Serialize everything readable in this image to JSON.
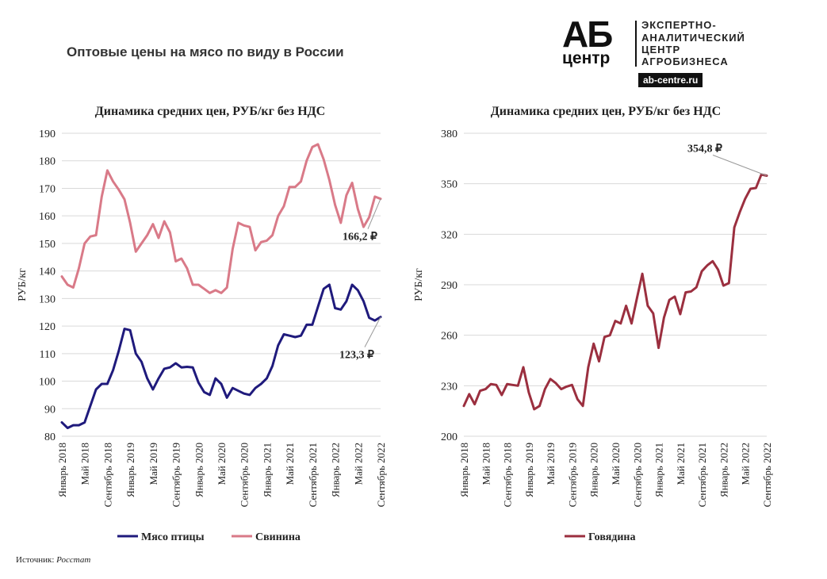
{
  "header": {
    "title": "Оптовые цены на мясо по виду в России",
    "logo": {
      "ab": "АБ",
      "centr": "центр",
      "line1": "ЭКСПЕРТНО-",
      "line2": "АНАЛИТИЧЕСКИЙ",
      "line3": "ЦЕНТР",
      "line4": "АГРОБИЗНЕСА",
      "site": "ab-centre.ru"
    }
  },
  "source": {
    "label": "Источник:",
    "value": "Росстат"
  },
  "colors": {
    "poultry": "#1f1a7c",
    "pork": "#d97a88",
    "beef": "#9b2f3f",
    "grid": "#d9d9d9",
    "text": "#222222"
  },
  "chart_data": [
    {
      "type": "line",
      "title": "Динамика средних цен, РУБ/кг без НДС",
      "ylabel": "РУБ/кг",
      "xlabel": "",
      "ylim": [
        80,
        190
      ],
      "yticks": [
        "80",
        "90",
        "100",
        "110",
        "120",
        "130",
        "140",
        "150",
        "160",
        "170",
        "180",
        "190"
      ],
      "xtick_labels": [
        "Январь 2018",
        "Май 2018",
        "Сентябрь 2018",
        "Январь 2019",
        "Май 2019",
        "Сентябрь 2019",
        "Январь 2020",
        "Май 2020",
        "Сентябрь 2020",
        "Январь 2021",
        "Май 2021",
        "Сентябрь 2021",
        "Январь 2022",
        "Май 2022",
        "Сентябрь 2022"
      ],
      "grid": true,
      "legend_position": "bottom",
      "series": [
        {
          "name": "Мясо птицы",
          "color": "#1f1a7c",
          "values": [
            85,
            83,
            84,
            84,
            85,
            91,
            97,
            99,
            99,
            104,
            111,
            119,
            118.5,
            110,
            107,
            101,
            97,
            101,
            104.5,
            105,
            106.5,
            105,
            105.2,
            105,
            99.5,
            96,
            95,
            101,
            99,
            94,
            97.5,
            96.5,
            95.5,
            95,
            97.5,
            99,
            101,
            105.5,
            113,
            117,
            116.5,
            116,
            116.5,
            120.5,
            120.5,
            127,
            133.5,
            135,
            126.5,
            126,
            129,
            135,
            133,
            129,
            123,
            122,
            123.3
          ],
          "end_label": "123,3 ₽"
        },
        {
          "name": "Свинина",
          "color": "#d97a88",
          "values": [
            138,
            135,
            134,
            141,
            150,
            152.5,
            153,
            167,
            176.5,
            172.5,
            169.5,
            166,
            157.5,
            147,
            150,
            153,
            157,
            152,
            158,
            154,
            143.5,
            144.5,
            141,
            135,
            135,
            133.5,
            132,
            133,
            132,
            134,
            148,
            157.5,
            156.5,
            156,
            147.5,
            150.5,
            151,
            153,
            160,
            163.5,
            170.5,
            170.5,
            172.5,
            180,
            185,
            186,
            180.5,
            173,
            164,
            157.5,
            167.5,
            172,
            162.5,
            156,
            159.5,
            167,
            166.2
          ],
          "end_label": "166,2 ₽"
        }
      ]
    },
    {
      "type": "line",
      "title": "Динамика средних цен, РУБ/кг без НДС",
      "ylabel": "РУБ/кг",
      "xlabel": "",
      "ylim": [
        200,
        380
      ],
      "yticks": [
        "200",
        "230",
        "260",
        "290",
        "320",
        "350",
        "380"
      ],
      "xtick_labels": [
        "Январь 2018",
        "Май 2018",
        "Сентябрь 2018",
        "Январь 2019",
        "Май 2019",
        "Сентябрь 2019",
        "Январь 2020",
        "Май 2020",
        "Сентябрь 2020",
        "Январь 2021",
        "Май 2021",
        "Сентябрь 2021",
        "Январь 2022",
        "Май 2022",
        "Сентябрь 2022"
      ],
      "grid": true,
      "legend_position": "bottom",
      "series": [
        {
          "name": "Говядина",
          "color": "#9b2f3f",
          "values": [
            218,
            225,
            219,
            227,
            228,
            231,
            230.5,
            224.5,
            231,
            230.5,
            230,
            241,
            226,
            216,
            218,
            228,
            234,
            231.5,
            228,
            229.5,
            230.5,
            222,
            218,
            241,
            255,
            244.5,
            259,
            260,
            268.5,
            267,
            277.5,
            267,
            282,
            296.5,
            277.5,
            273,
            252.5,
            270.5,
            281,
            283,
            272.5,
            285.5,
            286,
            288.5,
            298,
            301.5,
            304,
            299,
            289.5,
            291,
            324,
            333,
            341,
            347,
            347.5,
            355.5,
            354.8
          ],
          "end_label": "354,8 ₽"
        }
      ]
    }
  ]
}
